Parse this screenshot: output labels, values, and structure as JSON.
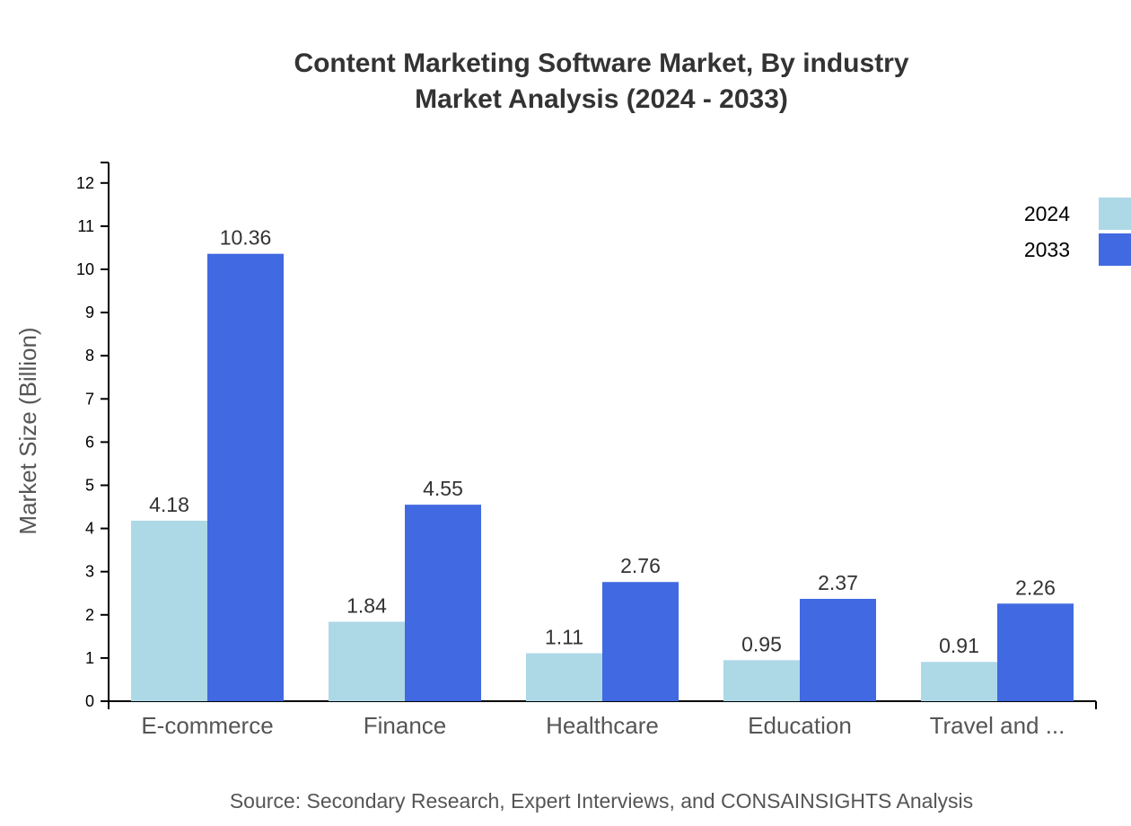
{
  "chart_data": {
    "type": "bar",
    "title": "Content Marketing Software Market, By industry",
    "subtitle": "Market Analysis (2024 - 2033)",
    "ylabel": "Market Size (Billion)",
    "xlabel": "",
    "ylim": [
      0,
      12.5
    ],
    "yticks": [
      0,
      1,
      2,
      3,
      4,
      5,
      6,
      7,
      8,
      9,
      10,
      11,
      12
    ],
    "categories": [
      "E-commerce",
      "Finance",
      "Healthcare",
      "Education",
      "Travel and ..."
    ],
    "series": [
      {
        "name": "2024",
        "color": "#add8e6",
        "values": [
          4.18,
          1.84,
          1.11,
          0.95,
          0.91
        ]
      },
      {
        "name": "2033",
        "color": "#4169e1",
        "values": [
          10.36,
          4.55,
          2.76,
          2.37,
          2.26
        ]
      }
    ],
    "legend_placement": "top-right",
    "grid": false,
    "source": "Source: Secondary Research, Expert Interviews, and CONSAINSIGHTS Analysis"
  }
}
